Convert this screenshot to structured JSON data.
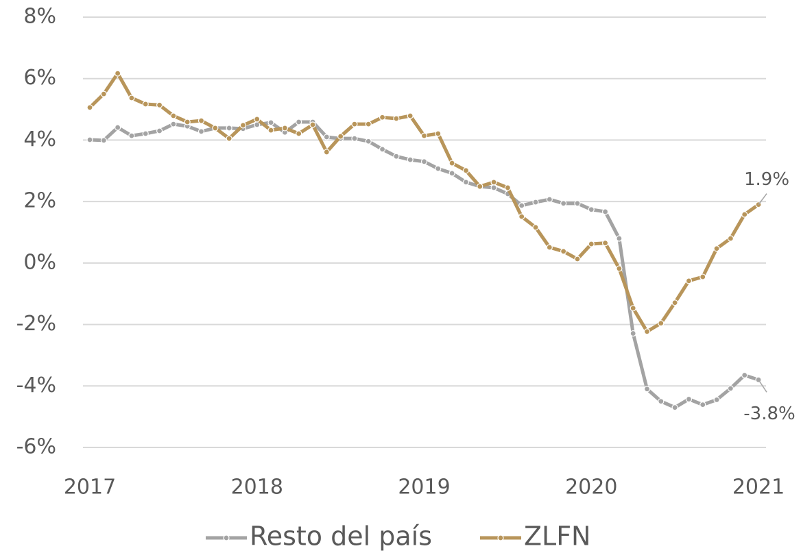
{
  "chart_data": {
    "type": "line",
    "categories": [
      "2017",
      null,
      null,
      null,
      null,
      null,
      null,
      null,
      null,
      null,
      null,
      null,
      "2018",
      null,
      null,
      null,
      null,
      null,
      null,
      null,
      null,
      null,
      null,
      null,
      "2019",
      null,
      null,
      null,
      null,
      null,
      null,
      null,
      null,
      null,
      null,
      null,
      "2020",
      null,
      null,
      null,
      null,
      null,
      null,
      null,
      null,
      null,
      null,
      null,
      "2021"
    ],
    "series": [
      {
        "name": "Resto del país",
        "color": "#a3a3a3",
        "values": [
          4.01,
          3.99,
          4.41,
          4.14,
          4.21,
          4.3,
          4.52,
          4.45,
          4.28,
          4.39,
          4.39,
          4.37,
          4.5,
          4.57,
          4.25,
          4.59,
          4.59,
          4.1,
          4.05,
          4.05,
          3.96,
          3.7,
          3.47,
          3.36,
          3.3,
          3.07,
          2.92,
          2.63,
          2.49,
          2.45,
          2.25,
          1.87,
          1.98,
          2.07,
          1.94,
          1.94,
          1.74,
          1.67,
          0.8,
          -2.29,
          -4.1,
          -4.5,
          -4.7,
          -4.43,
          -4.61,
          -4.45,
          -4.08,
          -3.65,
          -3.8
        ],
        "value_labels": [
          null,
          null,
          null,
          null,
          null,
          null,
          null,
          null,
          null,
          null,
          null,
          null,
          null,
          null,
          null,
          null,
          null,
          null,
          null,
          null,
          null,
          null,
          null,
          null,
          null,
          null,
          null,
          null,
          null,
          null,
          null,
          null,
          null,
          null,
          null,
          null,
          null,
          null,
          null,
          null,
          null,
          null,
          null,
          null,
          null,
          null,
          null,
          null,
          "-3.8%"
        ]
      },
      {
        "name": "ZLFN",
        "color": "#b8955a",
        "values": [
          5.06,
          5.5,
          6.17,
          5.37,
          5.17,
          5.14,
          4.79,
          4.59,
          4.63,
          4.39,
          4.05,
          4.48,
          4.68,
          4.32,
          4.39,
          4.21,
          4.5,
          3.61,
          4.12,
          4.52,
          4.52,
          4.74,
          4.7,
          4.79,
          4.14,
          4.21,
          3.25,
          3.01,
          2.49,
          2.63,
          2.45,
          1.51,
          1.16,
          0.51,
          0.38,
          0.13,
          0.62,
          0.65,
          -0.18,
          -1.47,
          -2.23,
          -1.96,
          -1.29,
          -0.58,
          -0.45,
          0.47,
          0.8,
          1.58,
          1.9
        ],
        "value_labels": [
          null,
          null,
          null,
          null,
          null,
          null,
          null,
          null,
          null,
          null,
          null,
          null,
          null,
          null,
          null,
          null,
          null,
          null,
          null,
          null,
          null,
          null,
          null,
          null,
          null,
          null,
          null,
          null,
          null,
          null,
          null,
          null,
          null,
          null,
          null,
          null,
          null,
          null,
          null,
          null,
          null,
          null,
          null,
          null,
          null,
          null,
          null,
          null,
          "1.9%"
        ]
      }
    ],
    "ylim": [
      -6,
      8
    ],
    "yticks": [
      {
        "value": -6,
        "label": "-6%"
      },
      {
        "value": -4,
        "label": "-4%"
      },
      {
        "value": -2,
        "label": "-2%"
      },
      {
        "value": 0,
        "label": "0%"
      },
      {
        "value": 2,
        "label": "2%"
      },
      {
        "value": 4,
        "label": "4%"
      },
      {
        "value": 6,
        "label": "6%"
      },
      {
        "value": 8,
        "label": "8%"
      }
    ],
    "grid": true,
    "legend": "bottom"
  }
}
